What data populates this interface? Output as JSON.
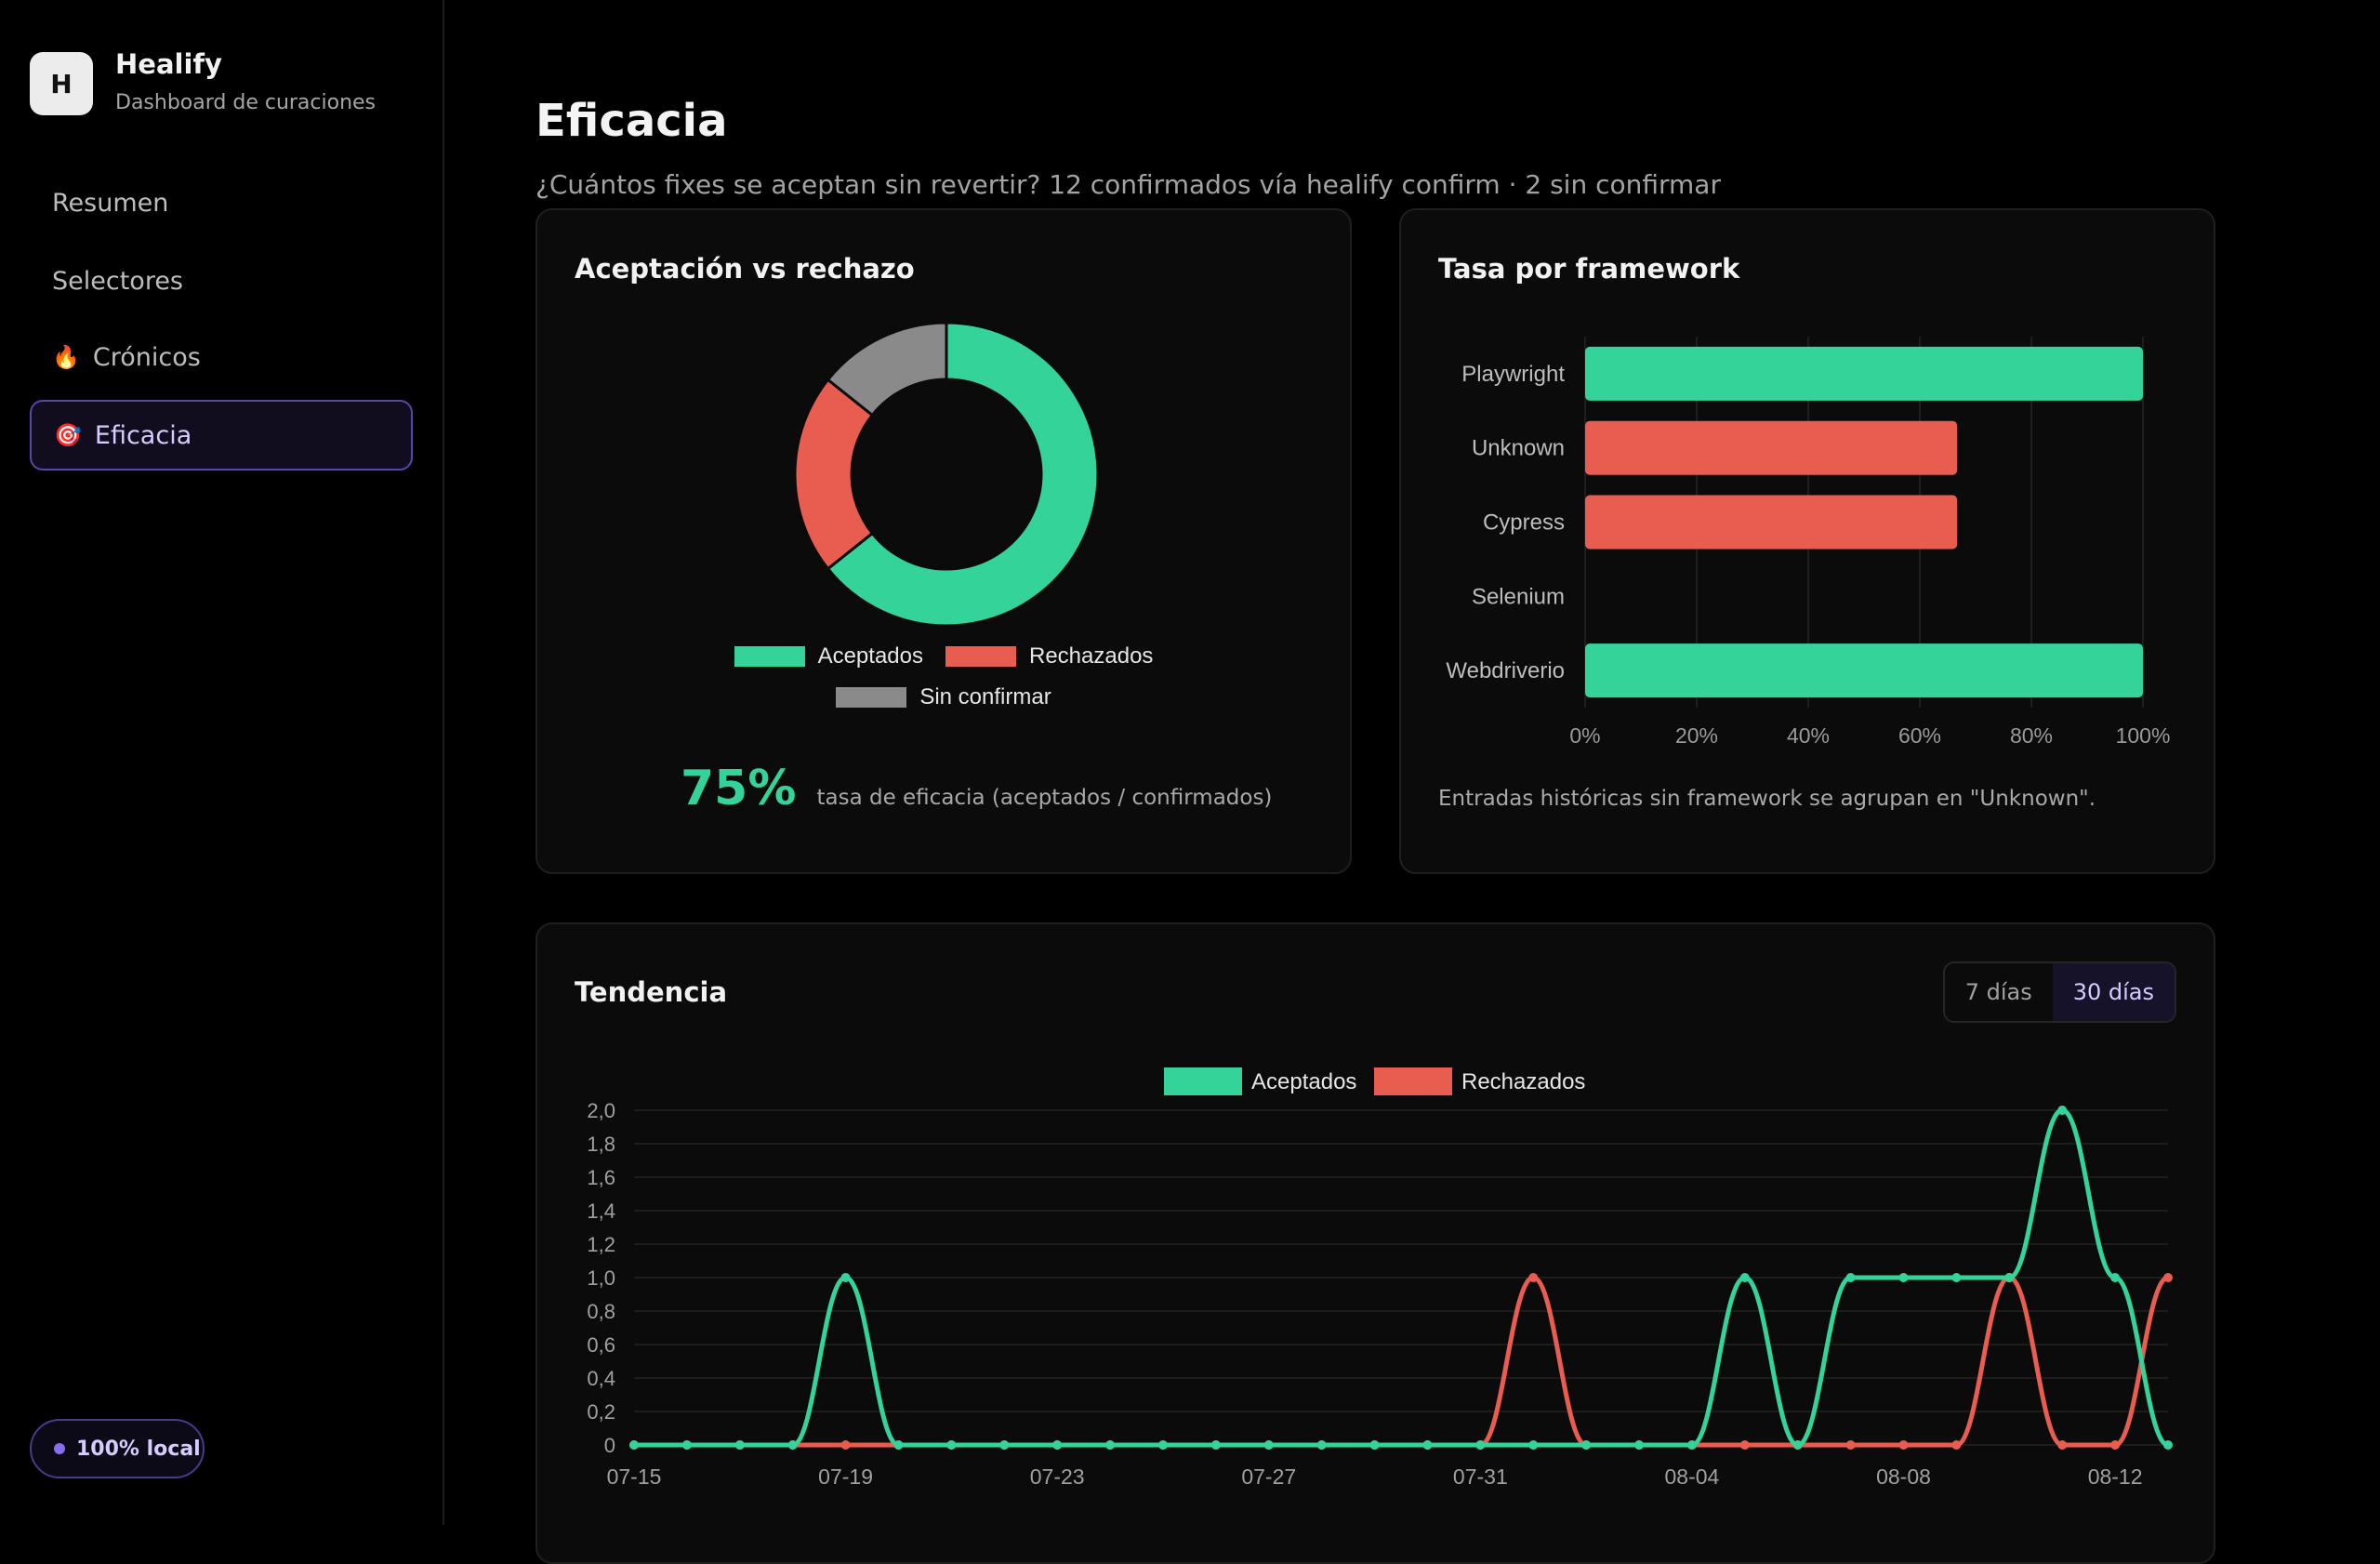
{
  "app": {
    "logo_letter": "H",
    "name": "Healify",
    "subtitle": "Dashboard de curaciones"
  },
  "sidebar": {
    "items": [
      {
        "label": "Resumen",
        "icon": "",
        "active": false
      },
      {
        "label": "Selectores",
        "icon": "",
        "active": false
      },
      {
        "label": "Crónicos",
        "icon": "🔥",
        "icon_name": "fire-icon",
        "active": false
      },
      {
        "label": "Eficacia",
        "icon": "🎯",
        "icon_name": "target-icon",
        "active": true
      }
    ],
    "badge": "100% local"
  },
  "page": {
    "title": "Eficacia",
    "subtitle": "¿Cuántos fixes se aceptan sin revertir? 12 confirmados vía healify confirm · 2 sin confirmar"
  },
  "colors": {
    "accepted": "#34d399",
    "rejected": "#e85d4f",
    "unconfirmed": "#8a8a8a",
    "accent": "#8b6cf0"
  },
  "acceptance_card": {
    "title": "Aceptación vs rechazo",
    "rate_value": "75%",
    "rate_label": "tasa de eficacia (aceptados / confirmados)"
  },
  "framework_card": {
    "title": "Tasa por framework",
    "note": "Entradas históricas sin framework se agrupan en \"Unknown\"."
  },
  "trend_card": {
    "title": "Tendencia",
    "ranges": [
      {
        "label": "7 días",
        "active": false
      },
      {
        "label": "30 días",
        "active": true
      }
    ]
  },
  "chart_data": [
    {
      "type": "pie",
      "variant": "doughnut",
      "categories": [
        "Aceptados",
        "Rechazados",
        "Sin confirmar"
      ],
      "values": [
        9,
        3,
        2
      ],
      "legend": "bottom"
    },
    {
      "type": "bar",
      "orientation": "horizontal",
      "categories": [
        "Playwright",
        "Unknown",
        "Cypress",
        "Selenium",
        "Webdriverio"
      ],
      "values": [
        100,
        66.7,
        66.7,
        0,
        100
      ],
      "bar_status": [
        "accepted",
        "rejected",
        "rejected",
        "none",
        "accepted"
      ],
      "xlim": [
        0,
        100
      ],
      "xticks": [
        "0%",
        "20%",
        "40%",
        "60%",
        "80%",
        "100%"
      ],
      "grid": true
    },
    {
      "type": "line",
      "legend": "top",
      "x": [
        "07-15",
        "07-16",
        "07-17",
        "07-18",
        "07-19",
        "07-20",
        "07-21",
        "07-22",
        "07-23",
        "07-24",
        "07-25",
        "07-26",
        "07-27",
        "07-28",
        "07-29",
        "07-30",
        "07-31",
        "08-01",
        "08-02",
        "08-03",
        "08-04",
        "08-05",
        "08-06",
        "08-07",
        "08-08",
        "08-09",
        "08-10",
        "08-11",
        "08-12",
        "08-13"
      ],
      "xticks": [
        "07-15",
        "07-19",
        "07-23",
        "07-27",
        "07-31",
        "08-04",
        "08-08",
        "08-12"
      ],
      "ylim": [
        0,
        2
      ],
      "yticks": [
        "0",
        "0,2",
        "0,4",
        "0,6",
        "0,8",
        "1,0",
        "1,2",
        "1,4",
        "1,6",
        "1,8",
        "2,0"
      ],
      "series": [
        {
          "name": "Aceptados",
          "color": "#34d399",
          "values": [
            0,
            0,
            0,
            0,
            1,
            0,
            0,
            0,
            0,
            0,
            0,
            0,
            0,
            0,
            0,
            0,
            0,
            0,
            0,
            0,
            0,
            1,
            0,
            1,
            1,
            1,
            1,
            2,
            1,
            0
          ]
        },
        {
          "name": "Rechazados",
          "color": "#e85d4f",
          "values": [
            0,
            0,
            0,
            0,
            0,
            0,
            0,
            0,
            0,
            0,
            0,
            0,
            0,
            0,
            0,
            0,
            0,
            1,
            0,
            0,
            0,
            0,
            0,
            0,
            0,
            0,
            1,
            0,
            0,
            1
          ]
        }
      ],
      "grid": true
    }
  ]
}
